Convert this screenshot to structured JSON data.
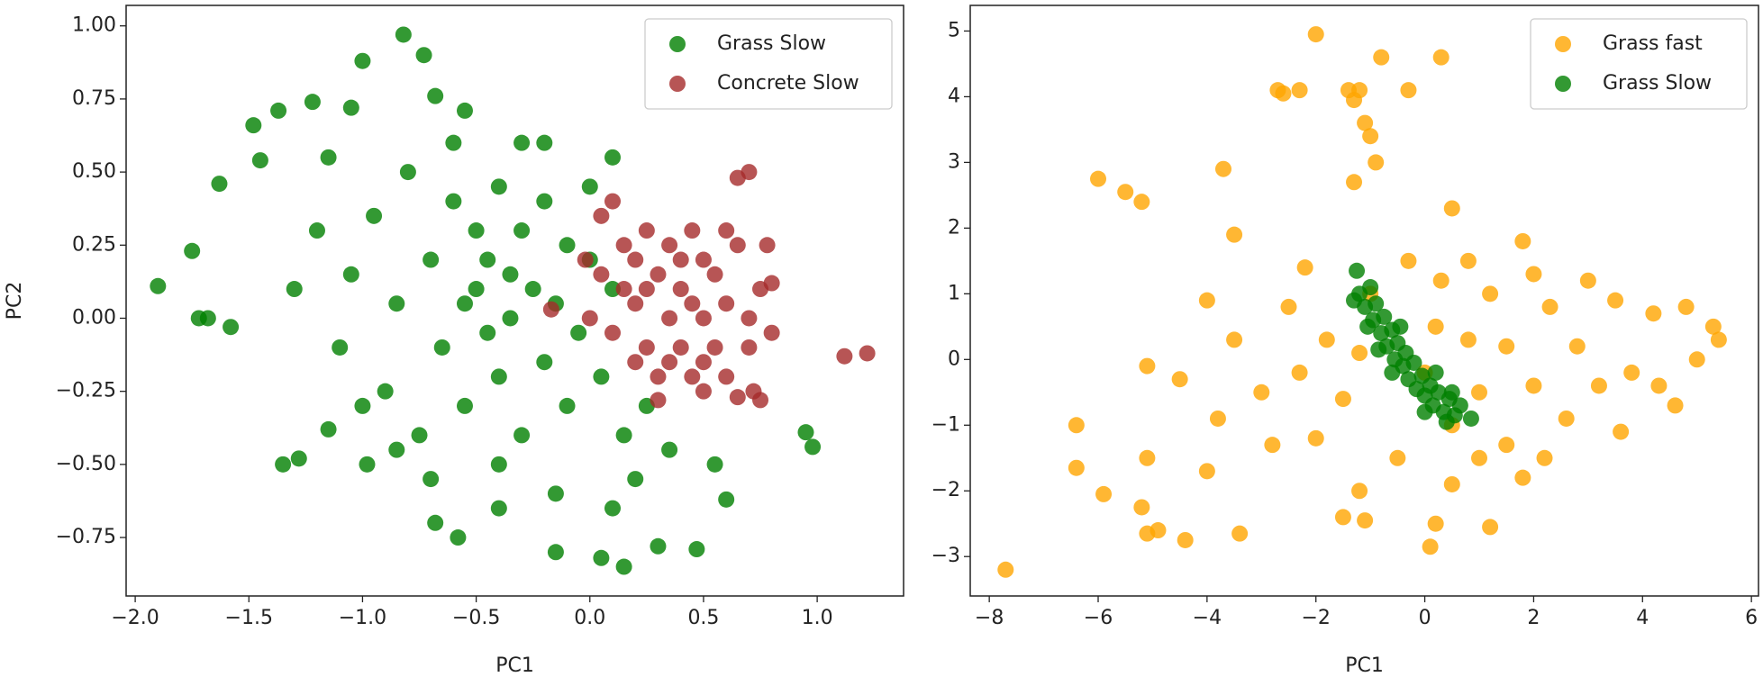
{
  "chart_data": [
    {
      "type": "scatter",
      "xlabel": "PC1",
      "ylabel": "PC2",
      "xlim": [
        -2.04,
        1.38
      ],
      "ylim": [
        -0.95,
        1.07
      ],
      "xticks": [
        {
          "value": -2,
          "label": "−2.0"
        },
        {
          "value": -1.5,
          "label": "−1.5"
        },
        {
          "value": -1,
          "label": "−1.0"
        },
        {
          "value": -0.5,
          "label": "−0.5"
        },
        {
          "value": 0,
          "label": "0.0"
        },
        0.5,
        {
          "value": 1,
          "label": "1.0"
        }
      ],
      "yticks": [
        {
          "value": -0.75,
          "label": "−0.75"
        },
        {
          "value": -0.5,
          "label": "−0.50"
        },
        {
          "value": -0.25,
          "label": "−0.25"
        },
        {
          "value": 0,
          "label": "0.00"
        },
        0.25,
        {
          "value": 0.5,
          "label": "0.50"
        },
        0.75,
        {
          "value": 1,
          "label": "1.00"
        }
      ],
      "legend": "upper right",
      "alpha": 0.8,
      "series": [
        {
          "name": "Grass Slow",
          "color": "#008000",
          "x": [
            -1.9,
            -1.75,
            -1.72,
            -1.68,
            -1.58,
            -1.63,
            -1.48,
            -1.45,
            -1.37,
            -1.22,
            -1.05,
            -1.0,
            -0.82,
            -0.73,
            -0.68,
            -0.55,
            -1.35,
            -1.28,
            -1.15,
            -0.98,
            -0.68,
            -0.58,
            -0.4,
            -0.15,
            0.05,
            0.15,
            0.3,
            0.47,
            0.95,
            0.98,
            0.6,
            0.55,
            -1.3,
            -1.2,
            -1.1,
            -1.05,
            -0.95,
            -0.9,
            -0.85,
            -0.8,
            -0.75,
            -0.7,
            -0.65,
            -0.6,
            -0.55,
            -0.5,
            -0.5,
            -0.45,
            -0.45,
            -0.4,
            -0.4,
            -0.35,
            -0.35,
            -0.3,
            -0.3,
            -0.25,
            -0.2,
            -0.2,
            -0.15,
            -0.1,
            -0.1,
            -0.05,
            0.0,
            0.05,
            0.1,
            0.15,
            0.2,
            0.25,
            0.35,
            -0.6,
            -0.3,
            -0.85,
            -1.0,
            -0.7,
            -0.55,
            -0.4,
            0.0,
            -0.15,
            0.1,
            -1.15,
            -0.2,
            0.1
          ],
          "y": [
            0.11,
            0.23,
            0.0,
            0.0,
            -0.03,
            0.46,
            0.66,
            0.54,
            0.71,
            0.74,
            0.72,
            0.88,
            0.97,
            0.9,
            0.76,
            0.71,
            -0.5,
            -0.48,
            -0.38,
            -0.5,
            -0.7,
            -0.75,
            -0.65,
            -0.8,
            -0.82,
            -0.85,
            -0.78,
            -0.79,
            -0.39,
            -0.44,
            -0.62,
            -0.5,
            0.1,
            0.3,
            -0.1,
            0.15,
            0.35,
            -0.25,
            0.05,
            0.5,
            -0.4,
            0.2,
            -0.1,
            0.4,
            -0.3,
            0.1,
            0.3,
            -0.05,
            0.2,
            0.45,
            -0.2,
            0.0,
            0.15,
            -0.4,
            0.3,
            0.1,
            -0.15,
            0.4,
            0.05,
            -0.3,
            0.25,
            -0.05,
            0.45,
            -0.2,
            0.1,
            -0.4,
            -0.55,
            -0.3,
            -0.45,
            0.6,
            0.6,
            -0.45,
            -0.3,
            -0.55,
            0.05,
            -0.5,
            0.2,
            -0.6,
            -0.65,
            0.55,
            0.6,
            0.55
          ]
        },
        {
          "name": "Concrete Slow",
          "color": "#a52a2a",
          "x": [
            0.05,
            0.1,
            0.15,
            0.2,
            0.2,
            0.25,
            0.25,
            0.3,
            0.3,
            0.35,
            0.35,
            0.4,
            0.4,
            0.45,
            0.45,
            0.5,
            0.5,
            0.55,
            0.55,
            0.6,
            0.6,
            0.65,
            0.7,
            0.7,
            0.75,
            0.8,
            0.8,
            0.78,
            0.65,
            0.7,
            0.1,
            0.05,
            0.65,
            0.72,
            0.75,
            0.5,
            0.3,
            1.12,
            1.22,
            -0.02,
            -0.17,
            0.0,
            0.15,
            0.25,
            0.4,
            0.45,
            0.35,
            0.6,
            0.2,
            0.5
          ],
          "y": [
            0.15,
            -0.05,
            0.25,
            -0.15,
            0.05,
            0.3,
            -0.1,
            0.15,
            -0.2,
            0.0,
            0.25,
            -0.1,
            0.1,
            0.3,
            -0.2,
            0.0,
            0.2,
            -0.1,
            0.15,
            0.05,
            -0.2,
            0.25,
            0.0,
            -0.1,
            0.1,
            -0.05,
            0.12,
            0.25,
            0.48,
            0.5,
            0.4,
            0.35,
            -0.27,
            -0.25,
            -0.28,
            -0.25,
            -0.28,
            -0.13,
            -0.12,
            0.2,
            0.03,
            0.0,
            0.1,
            0.1,
            0.2,
            0.05,
            -0.15,
            0.3,
            0.2,
            -0.15
          ]
        }
      ]
    },
    {
      "type": "scatter",
      "xlabel": "PC1",
      "xlim": [
        -8.35,
        6.13
      ],
      "ylim": [
        -3.6,
        5.39
      ],
      "xticks": [
        {
          "value": -8,
          "label": "−8"
        },
        {
          "value": -6,
          "label": "−6"
        },
        {
          "value": -4,
          "label": "−4"
        },
        {
          "value": -2,
          "label": "−2"
        },
        0,
        2,
        4,
        6
      ],
      "yticks": [
        {
          "value": -3,
          "label": "−3"
        },
        {
          "value": -2,
          "label": "−2"
        },
        {
          "value": -1,
          "label": "−1"
        },
        0,
        1,
        2,
        3,
        4,
        5
      ],
      "legend": "upper right",
      "alpha": 0.8,
      "series": [
        {
          "name": "Grass fast",
          "color": "#ffa500",
          "x": [
            -7.7,
            -6.4,
            -6.4,
            -6.0,
            -5.9,
            -5.5,
            -5.2,
            -5.2,
            -5.1,
            -5.1,
            -5.1,
            -4.9,
            -4.4,
            -3.7,
            -3.5,
            -3.4,
            -2.0,
            -2.7,
            -2.6,
            -2.3,
            -1.4,
            -1.2,
            -1.3,
            -1.1,
            -1.0,
            -0.9,
            -1.3,
            -0.8,
            0.3,
            -0.3,
            0.5,
            -1.5,
            -1.1,
            0.2,
            0.1,
            1.2,
            4.8,
            5.3,
            5.4,
            5.0,
            4.6,
            3.6,
            4.2,
            3.0,
            1.8,
            2.2,
            -4.0,
            -3.5,
            -3.0,
            -2.5,
            -2.0,
            -1.8,
            -1.5,
            -1.0,
            -0.5,
            0.0,
            0.3,
            0.5,
            0.8,
            1.0,
            1.2,
            1.5,
            1.5,
            2.0,
            2.3,
            2.6,
            2.8,
            3.2,
            3.5,
            -4.5,
            -4.0,
            -2.8,
            -2.2,
            -0.3,
            0.8,
            1.8,
            -1.2,
            0.5,
            3.8,
            4.3,
            -3.8,
            -1.2,
            0.2,
            1.0,
            2.0,
            -2.3
          ],
          "y": [
            -3.2,
            -1.0,
            -1.65,
            2.75,
            -2.05,
            2.55,
            2.4,
            -2.25,
            -1.5,
            -2.65,
            -0.1,
            -2.6,
            -2.75,
            2.9,
            1.9,
            -2.65,
            4.95,
            4.1,
            4.05,
            4.1,
            4.1,
            4.1,
            3.95,
            3.6,
            3.4,
            3.0,
            2.7,
            4.6,
            4.6,
            4.1,
            2.3,
            -2.4,
            -2.45,
            -2.5,
            -2.85,
            -2.55,
            0.8,
            0.5,
            0.3,
            0.0,
            -0.7,
            -1.1,
            0.7,
            1.2,
            1.8,
            -1.5,
            0.9,
            0.3,
            -0.5,
            0.8,
            -1.2,
            0.3,
            -0.6,
            1.0,
            -1.5,
            -0.2,
            1.2,
            -1.0,
            0.3,
            -0.5,
            1.0,
            -1.3,
            0.2,
            -0.4,
            0.8,
            -0.9,
            0.2,
            -0.4,
            0.9,
            -0.3,
            -1.7,
            -1.3,
            1.4,
            1.5,
            1.5,
            -1.8,
            -2.0,
            -1.9,
            -0.2,
            -0.4,
            -0.9,
            0.1,
            0.5,
            -1.5,
            1.3,
            -0.2
          ]
        },
        {
          "name": "Grass Slow",
          "color": "#008000",
          "x": [
            -1.25,
            -1.2,
            -1.1,
            -1.0,
            -0.95,
            -0.9,
            -0.8,
            -0.75,
            -0.7,
            -0.6,
            -0.55,
            -0.5,
            -0.4,
            -0.35,
            -0.3,
            -0.2,
            -0.15,
            -0.05,
            0.0,
            0.1,
            0.15,
            0.25,
            0.35,
            0.45,
            0.55,
            0.65,
            0.85,
            -1.3,
            -0.85,
            0.5,
            -0.45,
            0.2,
            -1.05,
            -0.6,
            0.0,
            0.4
          ],
          "y": [
            1.35,
            1.0,
            0.8,
            1.1,
            0.6,
            0.85,
            0.4,
            0.65,
            0.2,
            0.45,
            0.0,
            0.25,
            -0.1,
            0.1,
            -0.3,
            -0.05,
            -0.45,
            -0.25,
            -0.55,
            -0.4,
            -0.7,
            -0.5,
            -0.8,
            -0.6,
            -0.85,
            -0.7,
            -0.9,
            0.9,
            0.15,
            -0.5,
            0.5,
            -0.2,
            0.5,
            -0.2,
            -0.8,
            -0.95
          ]
        }
      ]
    }
  ]
}
